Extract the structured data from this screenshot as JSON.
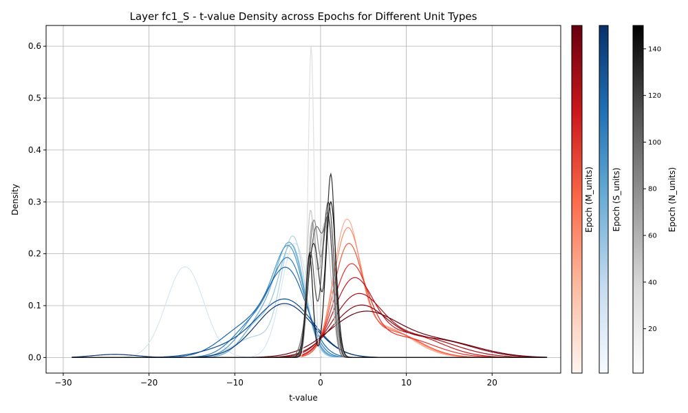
{
  "chart_data": {
    "type": "line",
    "title": "Layer fc1_S - t-value Density across Epochs for Different Unit Types",
    "xlabel": "t-value",
    "ylabel": "Density",
    "xlim": [
      -32,
      28
    ],
    "ylim": [
      -0.03,
      0.64
    ],
    "xticks": [
      -30,
      -20,
      -10,
      0,
      10,
      20
    ],
    "yticks": [
      0.0,
      0.1,
      0.2,
      0.3,
      0.4,
      0.5,
      0.6
    ],
    "grid": true,
    "colorbars": [
      {
        "label": "Epoch (M_units)",
        "colormap": "Reds",
        "colors": [
          "#fff5f0",
          "#fcbba1",
          "#fb6a4a",
          "#cb181d",
          "#67000d"
        ],
        "ticks_visible": false
      },
      {
        "label": "Epoch (S_units)",
        "colormap": "Blues",
        "colors": [
          "#f7fbff",
          "#c6dbef",
          "#6baed6",
          "#2171b5",
          "#08306b"
        ],
        "ticks_visible": false
      },
      {
        "label": "Epoch (N_units)",
        "colormap": "Greys",
        "colors": [
          "#ffffff",
          "#d9d9d9",
          "#969696",
          "#525252",
          "#000000"
        ],
        "range": [
          1,
          150
        ],
        "ticks": [
          "20",
          "40",
          "60",
          "80",
          "100",
          "120",
          "140"
        ]
      }
    ],
    "series": [
      {
        "group": "S_units",
        "color": "#d6e6f4",
        "peaks": [
          {
            "mu": -15.8,
            "sd": 2.2,
            "h": 0.175
          },
          {
            "mu": -3.0,
            "sd": 1.6,
            "h": 0.22
          }
        ]
      },
      {
        "group": "S_units",
        "color": "#b0d2e7",
        "peaks": [
          {
            "mu": -3.2,
            "sd": 1.4,
            "h": 0.225
          },
          {
            "mu": -7.5,
            "sd": 2.5,
            "h": 0.04
          }
        ]
      },
      {
        "group": "S_units",
        "color": "#8fc2de",
        "peaks": [
          {
            "mu": -3.3,
            "sd": 1.5,
            "h": 0.205
          },
          {
            "mu": -7.0,
            "sd": 2.0,
            "h": 0.07
          }
        ]
      },
      {
        "group": "S_units",
        "color": "#6aaed6",
        "peaks": [
          {
            "mu": -3.4,
            "sd": 1.6,
            "h": 0.19
          },
          {
            "mu": -6.5,
            "sd": 2.2,
            "h": 0.08
          }
        ]
      },
      {
        "group": "S_units",
        "color": "#4a98c9",
        "peaks": [
          {
            "mu": -3.5,
            "sd": 1.7,
            "h": 0.18
          },
          {
            "mu": -6.8,
            "sd": 2.4,
            "h": 0.085
          }
        ]
      },
      {
        "group": "S_units",
        "color": "#2e7ebc",
        "peaks": [
          {
            "mu": -3.6,
            "sd": 1.9,
            "h": 0.17
          },
          {
            "mu": -7.5,
            "sd": 2.5,
            "h": 0.07
          }
        ]
      },
      {
        "group": "S_units",
        "color": "#1764ab",
        "peaks": [
          {
            "mu": -3.8,
            "sd": 2.2,
            "h": 0.155
          },
          {
            "mu": -8.5,
            "sd": 3.0,
            "h": 0.06
          }
        ]
      },
      {
        "group": "S_units",
        "color": "#08488e",
        "peaks": [
          {
            "mu": -4.0,
            "sd": 3.2,
            "h": 0.108
          },
          {
            "mu": -10.0,
            "sd": 3.5,
            "h": 0.02
          }
        ]
      },
      {
        "group": "S_units",
        "color": "#08306b",
        "peaks": [
          {
            "mu": -4.2,
            "sd": 3.3,
            "h": 0.104
          },
          {
            "mu": -24.0,
            "sd": 2.5,
            "h": 0.006
          }
        ]
      },
      {
        "group": "M_units",
        "color": "#fcab8f",
        "peaks": [
          {
            "mu": 3.0,
            "sd": 1.5,
            "h": 0.235
          },
          {
            "mu": 7.0,
            "sd": 3.5,
            "h": 0.06
          }
        ]
      },
      {
        "group": "M_units",
        "color": "#fc8a6a",
        "peaks": [
          {
            "mu": 3.1,
            "sd": 1.6,
            "h": 0.225
          },
          {
            "mu": 7.5,
            "sd": 3.5,
            "h": 0.055
          }
        ]
      },
      {
        "group": "M_units",
        "color": "#f6553c",
        "peaks": [
          {
            "mu": 3.2,
            "sd": 1.7,
            "h": 0.2
          },
          {
            "mu": 8.0,
            "sd": 3.5,
            "h": 0.05
          }
        ]
      },
      {
        "group": "M_units",
        "color": "#e32f27",
        "peaks": [
          {
            "mu": 3.5,
            "sd": 2.0,
            "h": 0.165
          },
          {
            "mu": 9.0,
            "sd": 4.0,
            "h": 0.04
          }
        ]
      },
      {
        "group": "M_units",
        "color": "#c4161c",
        "peaks": [
          {
            "mu": 3.8,
            "sd": 2.3,
            "h": 0.14
          },
          {
            "mu": 10.0,
            "sd": 4.0,
            "h": 0.045
          }
        ]
      },
      {
        "group": "M_units",
        "color": "#a50f15",
        "peaks": [
          {
            "mu": 4.2,
            "sd": 2.8,
            "h": 0.11
          },
          {
            "mu": 11.0,
            "sd": 4.5,
            "h": 0.04
          }
        ]
      },
      {
        "group": "M_units",
        "color": "#820a12",
        "peaks": [
          {
            "mu": 4.5,
            "sd": 3.2,
            "h": 0.095
          },
          {
            "mu": 13.0,
            "sd": 4.5,
            "h": 0.035
          }
        ]
      },
      {
        "group": "M_units",
        "color": "#67000d",
        "peaks": [
          {
            "mu": 5.0,
            "sd": 4.0,
            "h": 0.085
          },
          {
            "mu": 14.0,
            "sd": 4.5,
            "h": 0.03
          }
        ]
      },
      {
        "group": "N_units",
        "color": "#e0e0e0",
        "peaks": [
          {
            "mu": -1.1,
            "sd": 0.35,
            "h": 0.6
          }
        ]
      },
      {
        "group": "N_units",
        "color": "#c4c4c4",
        "peaks": [
          {
            "mu": -1.2,
            "sd": 0.45,
            "h": 0.27
          },
          {
            "mu": 0.5,
            "sd": 0.7,
            "h": 0.26
          }
        ]
      },
      {
        "group": "N_units",
        "color": "#a6a6a6",
        "peaks": [
          {
            "mu": -1.0,
            "sd": 0.5,
            "h": 0.25
          },
          {
            "mu": 0.8,
            "sd": 0.7,
            "h": 0.28
          }
        ]
      },
      {
        "group": "N_units",
        "color": "#888888",
        "peaks": [
          {
            "mu": -0.8,
            "sd": 0.6,
            "h": 0.26
          },
          {
            "mu": 0.9,
            "sd": 0.6,
            "h": 0.27
          }
        ]
      },
      {
        "group": "N_units",
        "color": "#6a6a6a",
        "peaks": [
          {
            "mu": -0.5,
            "sd": 0.9,
            "h": 0.25
          },
          {
            "mu": 1.0,
            "sd": 0.5,
            "h": 0.2
          }
        ]
      },
      {
        "group": "N_units",
        "color": "#4d4d4d",
        "peaks": [
          {
            "mu": -1.2,
            "sd": 0.5,
            "h": 0.2
          },
          {
            "mu": 0.9,
            "sd": 0.7,
            "h": 0.3
          }
        ]
      },
      {
        "group": "N_units",
        "color": "#2f2f2f",
        "peaks": [
          {
            "mu": -0.8,
            "sd": 0.7,
            "h": 0.22
          },
          {
            "mu": 1.2,
            "sd": 0.5,
            "h": 0.35
          }
        ]
      },
      {
        "group": "N_units",
        "color": "#141414",
        "peaks": [
          {
            "mu": -1.3,
            "sd": 0.4,
            "h": 0.2
          },
          {
            "mu": 1.2,
            "sd": 0.6,
            "h": 0.3
          }
        ]
      }
    ]
  }
}
